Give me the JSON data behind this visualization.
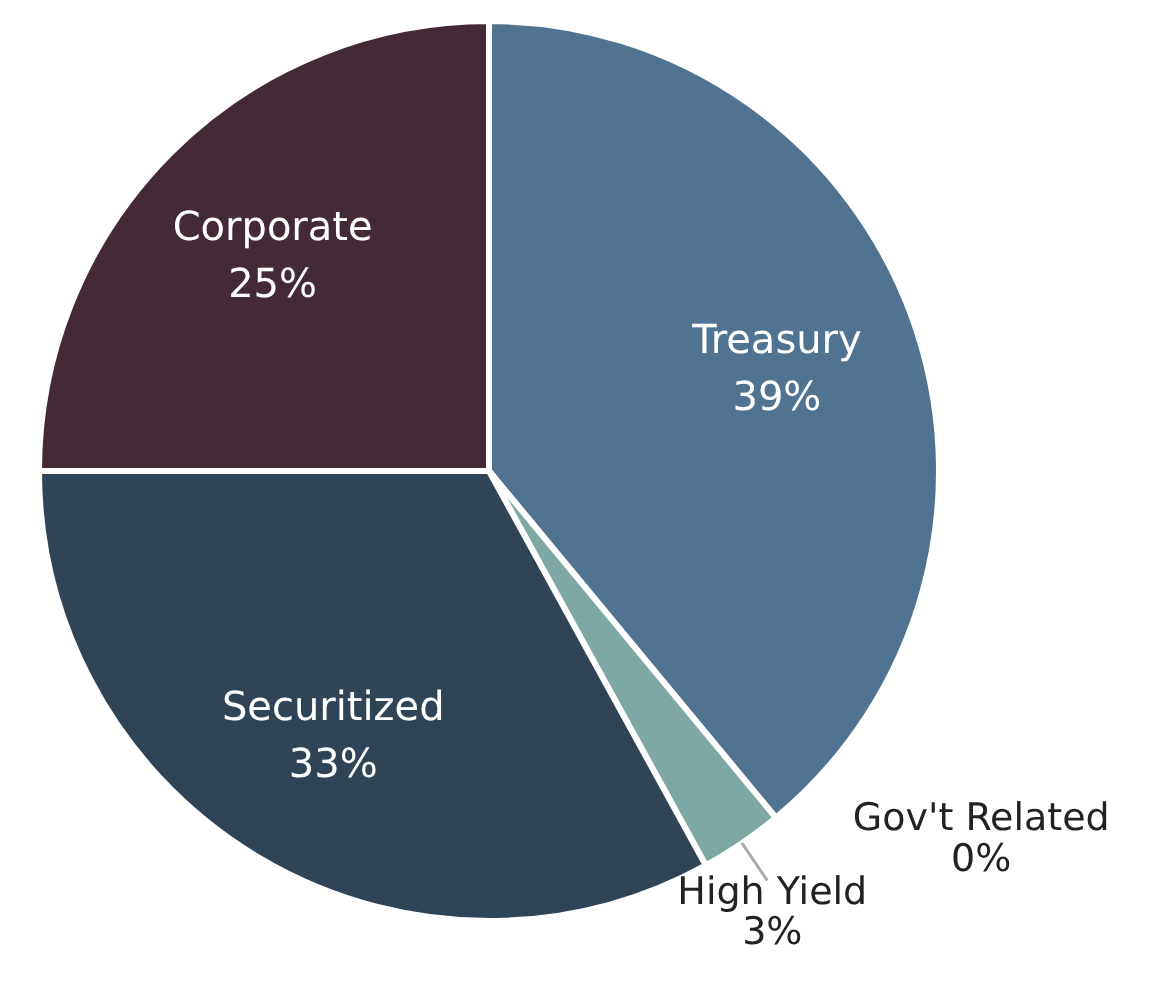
{
  "chart_data": {
    "type": "pie",
    "categories": [
      "Treasury",
      "Gov't Related",
      "High Yield",
      "Securitized",
      "Corporate"
    ],
    "values": [
      39,
      0,
      3,
      33,
      25
    ],
    "value_labels": [
      "39%",
      "0%",
      "3%",
      "33%",
      "25%"
    ],
    "colors": [
      "#4f7391",
      "#6f8fa0",
      "#7ea8a3",
      "#2f4456",
      "#432a36"
    ]
  }
}
